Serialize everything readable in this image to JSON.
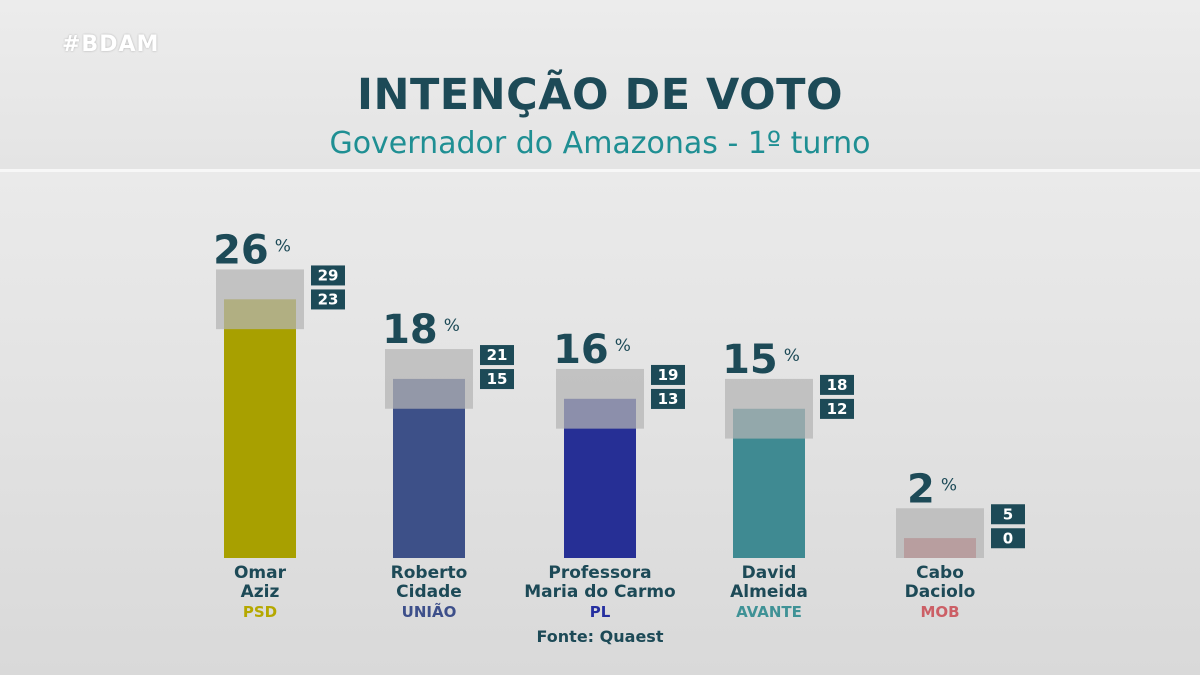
{
  "hashtag": "#BDAM",
  "source": "Fonte: Quaest",
  "colors": {
    "title": "#1d4a57",
    "subtitle": "#1f8f93",
    "margin_band": "#b4b4b4",
    "range_box": "#1d4a57"
  },
  "chart_data": {
    "type": "bar",
    "title": "INTENÇÃO DE VOTO",
    "subtitle": "Governador do Amazonas - 1º turno",
    "value_suffix": "%",
    "ylim": [
      0,
      30
    ],
    "categories": [
      {
        "name_lines": [
          "Omar",
          "Aziz"
        ],
        "party": "PSD",
        "value": 26,
        "upper": 29,
        "lower": 23,
        "color": "#a8a000",
        "party_color": "#b5a800"
      },
      {
        "name_lines": [
          "Roberto",
          "Cidade"
        ],
        "party": "UNIÃO",
        "value": 18,
        "upper": 21,
        "lower": 15,
        "color": "#3d5088",
        "party_color": "#3d4f8a"
      },
      {
        "name_lines": [
          "Professora",
          "Maria do Carmo"
        ],
        "party": "PL",
        "value": 16,
        "upper": 19,
        "lower": 13,
        "color": "#262f95",
        "party_color": "#252fa0"
      },
      {
        "name_lines": [
          "David",
          "Almeida"
        ],
        "party": "AVANTE",
        "value": 15,
        "upper": 18,
        "lower": 12,
        "color": "#3f8a92",
        "party_color": "#3f9296"
      },
      {
        "name_lines": [
          "Cabo",
          "Daciolo"
        ],
        "party": "MOB",
        "value": 2,
        "upper": 5,
        "lower": 0,
        "color": "#c06468",
        "party_color": "#cc5f66"
      }
    ]
  }
}
